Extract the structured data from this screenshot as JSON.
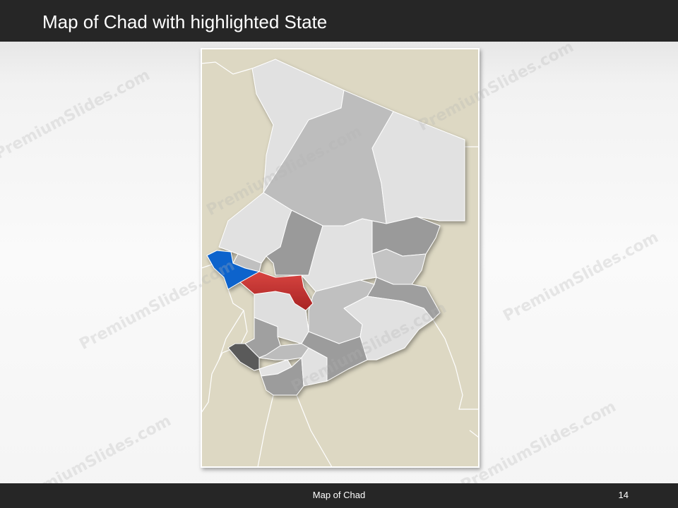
{
  "header": {
    "title": "Map of Chad with highlighted State"
  },
  "footer": {
    "label": "Map of Chad",
    "page_number": "14"
  },
  "watermark": "PremiumSlides.com",
  "colors": {
    "background_land": "#ddd8c3",
    "highlight_red": "#c8383a",
    "selected_blue": "#0a64cc",
    "dark_region": "#5a5a5a",
    "light_region": "#e1e1e1",
    "mid_region": "#bdbdbd",
    "gray_region": "#9a9a9a"
  }
}
